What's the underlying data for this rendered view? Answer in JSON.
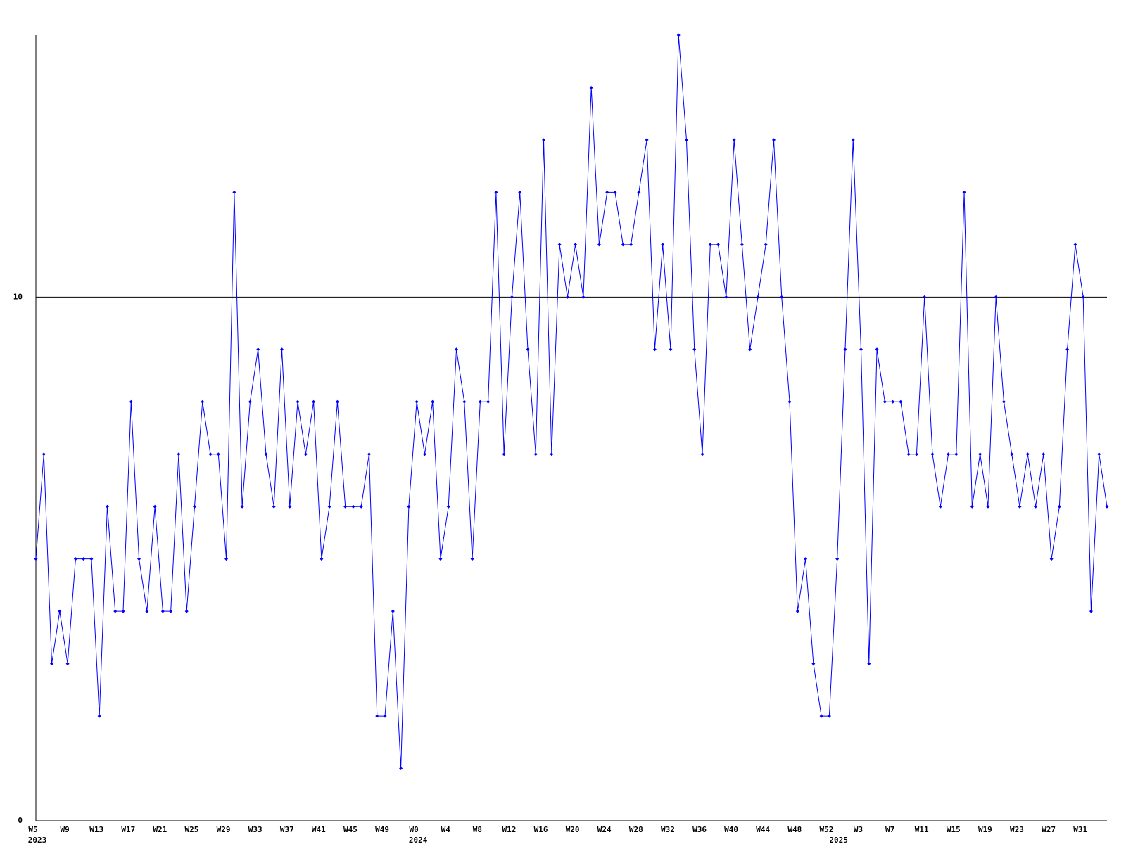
{
  "chart_data": {
    "type": "line",
    "color": "#0000ff",
    "grid": true,
    "ylim": [
      0,
      15
    ],
    "yticks": [
      0,
      10
    ],
    "categories": [
      "W5",
      null,
      null,
      null,
      "W9",
      null,
      null,
      null,
      "W13",
      null,
      null,
      null,
      "W17",
      null,
      null,
      null,
      "W21",
      null,
      null,
      null,
      "W25",
      null,
      null,
      null,
      "W29",
      null,
      null,
      null,
      "W33",
      null,
      null,
      null,
      "W37",
      null,
      null,
      null,
      "W41",
      null,
      null,
      null,
      "W45",
      null,
      null,
      null,
      "W49",
      null,
      null,
      null,
      "W0",
      null,
      null,
      null,
      "W4",
      null,
      null,
      null,
      "W8",
      null,
      null,
      null,
      "W12",
      null,
      null,
      null,
      "W16",
      null,
      null,
      null,
      "W20",
      null,
      null,
      null,
      "W24",
      null,
      null,
      null,
      "W28",
      null,
      null,
      null,
      "W32",
      null,
      null,
      null,
      "W36",
      null,
      null,
      null,
      "W40",
      null,
      null,
      null,
      "W44",
      null,
      null,
      null,
      "W48",
      null,
      null,
      null,
      "W52",
      null,
      null,
      null,
      "W3",
      null,
      null,
      null,
      "W7",
      null,
      null,
      null,
      "W11",
      null,
      null,
      null,
      "W15",
      null,
      null,
      null,
      "W19",
      null,
      null,
      null,
      "W23",
      null,
      null,
      null,
      "W27",
      null,
      null,
      null,
      "W31",
      null,
      null,
      null
    ],
    "years": [
      "2023",
      null,
      null,
      null,
      null,
      null,
      null,
      null,
      null,
      null,
      null,
      null,
      null,
      null,
      null,
      null,
      null,
      null,
      null,
      null,
      null,
      null,
      null,
      null,
      null,
      null,
      null,
      null,
      null,
      null,
      null,
      null,
      null,
      null,
      null,
      null,
      null,
      null,
      null,
      null,
      null,
      null,
      null,
      null,
      null,
      null,
      null,
      null,
      "2024",
      null,
      null,
      null,
      null,
      null,
      null,
      null,
      null,
      null,
      null,
      null,
      null,
      null,
      null,
      null,
      null,
      null,
      null,
      null,
      null,
      null,
      null,
      null,
      null,
      null,
      null,
      null,
      null,
      null,
      null,
      null,
      null,
      null,
      null,
      null,
      null,
      null,
      null,
      null,
      null,
      null,
      null,
      null,
      null,
      null,
      null,
      null,
      null,
      null,
      null,
      null,
      null,
      "2025",
      null,
      null,
      null,
      null,
      null,
      null,
      null,
      null,
      null,
      null,
      null,
      null,
      null,
      null,
      null,
      null,
      null,
      null,
      null,
      null,
      null,
      null,
      null,
      null,
      null,
      null,
      null,
      null,
      null,
      null,
      null,
      null,
      null
    ],
    "values": [
      5,
      7,
      3,
      4,
      3,
      5,
      5,
      5,
      2,
      6,
      4,
      4,
      8,
      5,
      4,
      6,
      4,
      4,
      7,
      4,
      6,
      8,
      7,
      7,
      5,
      12,
      6,
      8,
      9,
      7,
      6,
      9,
      6,
      8,
      7,
      8,
      5,
      6,
      8,
      6,
      6,
      6,
      7,
      2,
      2,
      4,
      1,
      6,
      8,
      7,
      8,
      5,
      6,
      9,
      8,
      5,
      8,
      8,
      12,
      7,
      10,
      12,
      9,
      7,
      13,
      7,
      11,
      10,
      11,
      10,
      14,
      11,
      12,
      12,
      11,
      11,
      12,
      13,
      9,
      11,
      9,
      15,
      13,
      9,
      7,
      11,
      11,
      10,
      13,
      11,
      9,
      10,
      11,
      13,
      10,
      8,
      4,
      5,
      3,
      2,
      2,
      5,
      9,
      13,
      9,
      3,
      9,
      8,
      8,
      8,
      7,
      7,
      10,
      7,
      6,
      7,
      7,
      12,
      6,
      7,
      6,
      10,
      8,
      7,
      6,
      7,
      6,
      7,
      5,
      6,
      9,
      11,
      10,
      4,
      7,
      6
    ]
  }
}
